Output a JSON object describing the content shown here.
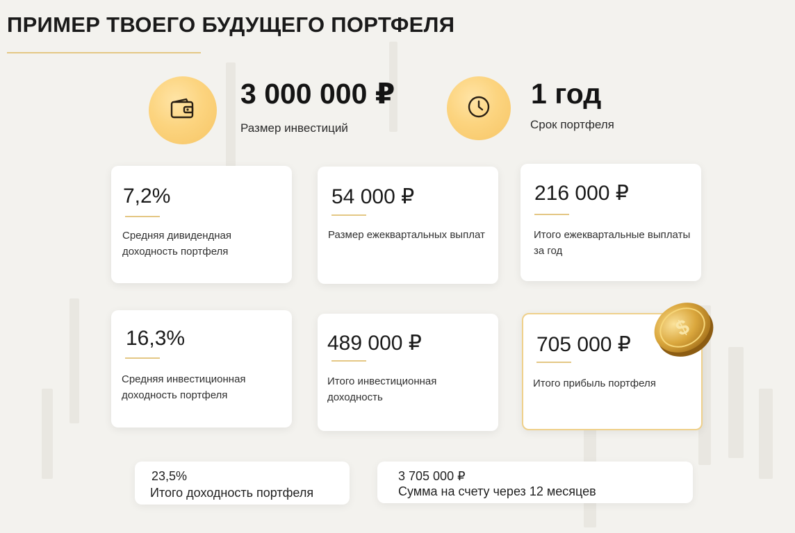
{
  "header": {
    "title": "ПРИМЕР ТВОЕГО БУДУЩЕГО ПОРТФЕЛЯ"
  },
  "hero": {
    "investment": {
      "value": "3 000 000 ₽",
      "label": "Размер инвестиций",
      "icon": "wallet-icon"
    },
    "term": {
      "value": "1 год",
      "label": "Срок портфеля",
      "icon": "clock-icon"
    }
  },
  "cards": [
    {
      "value": "7,2%",
      "label": "Средняя дивидендная доходность портфеля"
    },
    {
      "value": "54 000 ₽",
      "label": "Размер ежеквартальных выплат"
    },
    {
      "value": "216 000 ₽",
      "label": "Итого ежеквартальные выплаты за год"
    },
    {
      "value": "16,3%",
      "label": "Средняя инвестиционная доходность портфеля"
    },
    {
      "value": "489 000 ₽",
      "label": "Итого инвестиционная доходность"
    },
    {
      "value": "705 000 ₽",
      "label": "Итого прибыль портфеля"
    }
  ],
  "summary": [
    {
      "value": "23,5%",
      "label": "Итого доходность портфеля"
    },
    {
      "value": "3 705 000 ₽",
      "label": "Сумма на счету через 12 месяцев"
    }
  ],
  "decor": {
    "coin_icon": "gold-coin-icon",
    "accent_color": "#e4c784",
    "circle_color": "#fcd47f"
  }
}
